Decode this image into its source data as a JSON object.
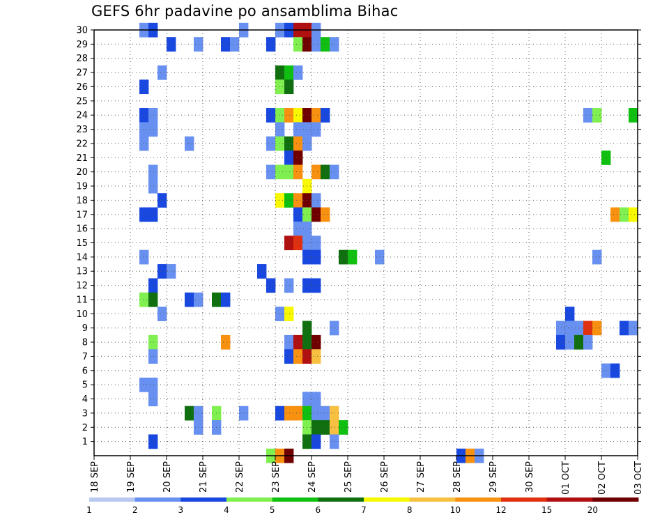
{
  "chart_data": {
    "type": "heatmap",
    "title": "GEFS 6hr padavine po ansamblima Bihac",
    "xlabel": "",
    "ylabel": "",
    "x_ticks": [
      "18 SEP",
      "19 SEP",
      "20 SEP",
      "21 SEP",
      "22 SEP",
      "23 SEP",
      "24 SEP",
      "25 SEP",
      "26 SEP",
      "27 SEP",
      "28 SEP",
      "29 SEP",
      "30 SEP",
      "01 OCT",
      "02 OCT",
      "03 OCT"
    ],
    "y_ticks": [
      "1",
      "2",
      "3",
      "4",
      "5",
      "6",
      "7",
      "8",
      "9",
      "10",
      "11",
      "12",
      "13",
      "14",
      "15",
      "16",
      "17",
      "18",
      "19",
      "20",
      "21",
      "22",
      "23",
      "24",
      "25",
      "26",
      "27",
      "28",
      "29",
      "30"
    ],
    "x_range_steps": [
      0,
      60
    ],
    "steps_per_day": 4,
    "y_range": [
      0,
      30
    ],
    "grid": true,
    "colorbar": {
      "labels": [
        "1",
        "2",
        "3",
        "4",
        "5",
        "6",
        "7",
        "8",
        "10",
        "12",
        "15",
        "20"
      ],
      "colors": [
        "#b8c8f0",
        "#6890f0",
        "#1848e0",
        "#80f050",
        "#10c010",
        "#107010",
        "#f8f800",
        "#f8c040",
        "#f89010",
        "#e03010",
        "#b01010",
        "#700000"
      ]
    },
    "cells": [
      [
        5,
        30,
        2
      ],
      [
        6,
        30,
        3
      ],
      [
        16,
        30,
        2
      ],
      [
        20,
        30,
        2
      ],
      [
        21,
        30,
        3
      ],
      [
        22,
        30,
        15
      ],
      [
        23,
        30,
        15
      ],
      [
        24,
        30,
        2
      ],
      [
        8,
        29,
        3
      ],
      [
        11,
        29,
        2
      ],
      [
        14,
        29,
        3
      ],
      [
        15,
        29,
        2
      ],
      [
        19,
        29,
        3
      ],
      [
        22,
        29,
        4
      ],
      [
        23,
        29,
        20
      ],
      [
        24,
        29,
        2
      ],
      [
        25,
        29,
        5
      ],
      [
        26,
        29,
        2
      ],
      [
        20,
        27,
        6
      ],
      [
        21,
        27,
        5
      ],
      [
        22,
        27,
        2
      ],
      [
        7,
        27,
        2
      ],
      [
        5,
        26,
        3
      ],
      [
        20,
        26,
        4
      ],
      [
        21,
        26,
        6
      ],
      [
        5,
        24,
        3
      ],
      [
        6,
        24,
        2
      ],
      [
        19,
        24,
        3
      ],
      [
        20,
        24,
        4
      ],
      [
        21,
        24,
        10
      ],
      [
        22,
        24,
        7
      ],
      [
        23,
        24,
        20
      ],
      [
        24,
        24,
        10
      ],
      [
        25,
        24,
        3
      ],
      [
        54,
        24,
        2
      ],
      [
        55,
        24,
        4
      ],
      [
        59,
        24,
        5
      ],
      [
        5,
        23,
        2
      ],
      [
        6,
        23,
        2
      ],
      [
        20,
        23,
        2
      ],
      [
        22,
        23,
        2
      ],
      [
        23,
        23,
        2
      ],
      [
        24,
        23,
        2
      ],
      [
        5,
        22,
        2
      ],
      [
        10,
        22,
        2
      ],
      [
        19,
        22,
        2
      ],
      [
        20,
        22,
        4
      ],
      [
        21,
        22,
        6
      ],
      [
        22,
        22,
        10
      ],
      [
        23,
        22,
        2
      ],
      [
        21,
        21,
        3
      ],
      [
        22,
        21,
        20
      ],
      [
        56,
        21,
        5
      ],
      [
        6,
        20,
        2
      ],
      [
        19,
        20,
        2
      ],
      [
        20,
        20,
        4
      ],
      [
        21,
        20,
        4
      ],
      [
        22,
        20,
        10
      ],
      [
        24,
        20,
        10
      ],
      [
        25,
        20,
        6
      ],
      [
        26,
        20,
        2
      ],
      [
        6,
        19,
        2
      ],
      [
        23,
        19,
        7
      ],
      [
        7,
        18,
        3
      ],
      [
        20,
        18,
        7
      ],
      [
        21,
        18,
        5
      ],
      [
        22,
        18,
        10
      ],
      [
        23,
        18,
        20
      ],
      [
        24,
        18,
        2
      ],
      [
        5,
        17,
        3
      ],
      [
        6,
        17,
        3
      ],
      [
        22,
        17,
        3
      ],
      [
        23,
        17,
        4
      ],
      [
        24,
        17,
        20
      ],
      [
        25,
        17,
        10
      ],
      [
        57,
        17,
        10
      ],
      [
        58,
        17,
        4
      ],
      [
        59,
        17,
        7
      ],
      [
        22,
        16,
        2
      ],
      [
        23,
        16,
        2
      ],
      [
        21,
        15,
        15
      ],
      [
        22,
        15,
        12
      ],
      [
        23,
        15,
        2
      ],
      [
        24,
        15,
        2
      ],
      [
        5,
        14,
        2
      ],
      [
        23,
        14,
        3
      ],
      [
        24,
        14,
        3
      ],
      [
        27,
        14,
        6
      ],
      [
        28,
        14,
        5
      ],
      [
        31,
        14,
        2
      ],
      [
        55,
        14,
        2
      ],
      [
        7,
        13,
        3
      ],
      [
        8,
        13,
        2
      ],
      [
        18,
        13,
        3
      ],
      [
        6,
        12,
        3
      ],
      [
        19,
        12,
        3
      ],
      [
        21,
        12,
        2
      ],
      [
        23,
        12,
        3
      ],
      [
        24,
        12,
        3
      ],
      [
        5,
        11,
        4
      ],
      [
        6,
        11,
        6
      ],
      [
        10,
        11,
        3
      ],
      [
        11,
        11,
        2
      ],
      [
        13,
        11,
        6
      ],
      [
        14,
        11,
        3
      ],
      [
        7,
        10,
        2
      ],
      [
        20,
        10,
        2
      ],
      [
        21,
        10,
        7
      ],
      [
        52,
        10,
        3
      ],
      [
        23,
        9,
        6
      ],
      [
        26,
        9,
        2
      ],
      [
        51,
        9,
        2
      ],
      [
        52,
        9,
        2
      ],
      [
        53,
        9,
        2
      ],
      [
        54,
        9,
        12
      ],
      [
        55,
        9,
        10
      ],
      [
        58,
        9,
        3
      ],
      [
        59,
        9,
        2
      ],
      [
        6,
        8,
        4
      ],
      [
        14,
        8,
        10
      ],
      [
        21,
        8,
        2
      ],
      [
        22,
        8,
        15
      ],
      [
        23,
        8,
        6
      ],
      [
        24,
        8,
        20
      ],
      [
        51,
        8,
        3
      ],
      [
        52,
        8,
        2
      ],
      [
        53,
        8,
        6
      ],
      [
        54,
        8,
        2
      ],
      [
        6,
        7,
        2
      ],
      [
        21,
        7,
        3
      ],
      [
        22,
        7,
        10
      ],
      [
        23,
        7,
        15
      ],
      [
        24,
        7,
        8
      ],
      [
        56,
        6,
        2
      ],
      [
        57,
        6,
        3
      ],
      [
        5,
        5,
        2
      ],
      [
        6,
        5,
        2
      ],
      [
        6,
        4,
        2
      ],
      [
        23,
        4,
        2
      ],
      [
        24,
        4,
        2
      ],
      [
        10,
        3,
        6
      ],
      [
        11,
        3,
        2
      ],
      [
        13,
        3,
        4
      ],
      [
        16,
        3,
        2
      ],
      [
        20,
        3,
        3
      ],
      [
        21,
        3,
        10
      ],
      [
        22,
        3,
        10
      ],
      [
        23,
        3,
        5
      ],
      [
        24,
        3,
        2
      ],
      [
        25,
        3,
        2
      ],
      [
        26,
        3,
        8
      ],
      [
        11,
        2,
        2
      ],
      [
        13,
        2,
        2
      ],
      [
        23,
        2,
        4
      ],
      [
        24,
        2,
        6
      ],
      [
        25,
        2,
        6
      ],
      [
        26,
        2,
        8
      ],
      [
        27,
        2,
        5
      ],
      [
        6,
        1,
        3
      ],
      [
        23,
        1,
        6
      ],
      [
        24,
        1,
        3
      ],
      [
        26,
        1,
        2
      ],
      [
        19,
        0,
        4
      ],
      [
        20,
        0,
        10
      ],
      [
        21,
        0,
        20
      ],
      [
        40,
        0,
        3
      ],
      [
        41,
        0,
        10
      ],
      [
        42,
        0,
        2
      ]
    ]
  }
}
